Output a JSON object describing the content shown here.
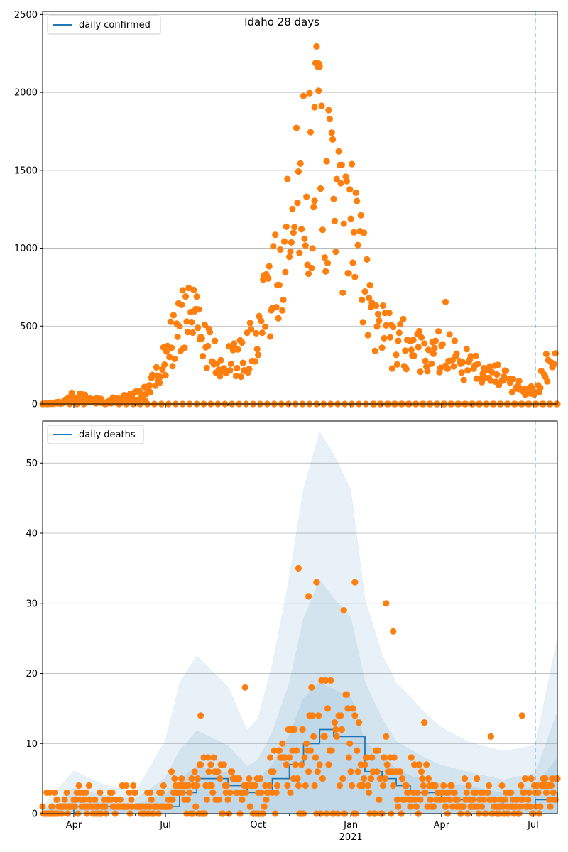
{
  "chart_data": [
    {
      "type": "scatter",
      "title": "Idaho 28 days",
      "x_range": [
        "2020-03-01",
        "2021-07-25"
      ],
      "ylim": [
        0,
        2520
      ],
      "y_ticks": [
        0,
        500,
        1000,
        1500,
        2000,
        2500
      ],
      "y_tick_labels": [
        "0",
        "500",
        "1000",
        "1500",
        "2000",
        "2500"
      ],
      "grid": "horizontal",
      "legend_position": "top-left",
      "vline_date": "2021-07-03",
      "series": [
        {
          "name": "daily confirmed",
          "kind": "line",
          "color": "#1f77b4",
          "x": [
            "2020-03-01",
            "2021-07-25"
          ],
          "y": [
            0,
            0
          ]
        }
      ],
      "observed": {
        "color": "#ff7f0e",
        "anchors": [
          [
            "2020-03-01",
            0
          ],
          [
            "2020-03-20",
            10
          ],
          [
            "2020-04-01",
            55
          ],
          [
            "2020-04-10",
            40
          ],
          [
            "2020-04-20",
            25
          ],
          [
            "2020-05-01",
            20
          ],
          [
            "2020-05-15",
            35
          ],
          [
            "2020-06-01",
            50
          ],
          [
            "2020-06-10",
            70
          ],
          [
            "2020-06-20",
            150
          ],
          [
            "2020-06-28",
            230
          ],
          [
            "2020-07-05",
            380
          ],
          [
            "2020-07-12",
            460
          ],
          [
            "2020-07-20",
            520
          ],
          [
            "2020-07-28",
            520
          ],
          [
            "2020-08-05",
            480
          ],
          [
            "2020-08-15",
            330
          ],
          [
            "2020-08-25",
            280
          ],
          [
            "2020-09-05",
            260
          ],
          [
            "2020-09-15",
            300
          ],
          [
            "2020-09-25",
            400
          ],
          [
            "2020-10-05",
            560
          ],
          [
            "2020-10-15",
            700
          ],
          [
            "2020-10-25",
            880
          ],
          [
            "2020-11-05",
            1150
          ],
          [
            "2020-11-15",
            1400
          ],
          [
            "2020-11-25",
            1600
          ],
          [
            "2020-12-05",
            1500
          ],
          [
            "2020-12-12",
            1380
          ],
          [
            "2020-12-20",
            1200
          ],
          [
            "2020-12-28",
            1060
          ],
          [
            "2021-01-05",
            1000
          ],
          [
            "2021-01-15",
            780
          ],
          [
            "2021-01-25",
            560
          ],
          [
            "2021-02-05",
            440
          ],
          [
            "2021-02-15",
            390
          ],
          [
            "2021-03-01",
            370
          ],
          [
            "2021-03-15",
            360
          ],
          [
            "2021-04-01",
            340
          ],
          [
            "2021-04-15",
            300
          ],
          [
            "2021-05-01",
            230
          ],
          [
            "2021-05-15",
            190
          ],
          [
            "2021-06-01",
            170
          ],
          [
            "2021-06-10",
            130
          ],
          [
            "2021-06-20",
            100
          ],
          [
            "2021-07-01",
            85
          ],
          [
            "2021-07-08",
            140
          ],
          [
            "2021-07-15",
            250
          ],
          [
            "2021-07-25",
            420
          ]
        ],
        "outliers": [
          [
            "2020-11-28",
            2295
          ],
          [
            "2020-11-21",
            1995
          ],
          [
            "2020-11-30",
            2010
          ],
          [
            "2020-11-26",
            1905
          ],
          [
            "2021-01-02",
            1540
          ],
          [
            "2020-07-18",
            730
          ],
          [
            "2020-08-01",
            690
          ],
          [
            "2021-04-05",
            655
          ]
        ]
      }
    },
    {
      "type": "scatter",
      "title": "",
      "x_range": [
        "2020-03-01",
        "2021-07-25"
      ],
      "ylim": [
        0,
        56
      ],
      "y_ticks": [
        0,
        10,
        20,
        30,
        40,
        50
      ],
      "y_tick_labels": [
        "0",
        "10",
        "20",
        "30",
        "40",
        "50"
      ],
      "grid": "horizontal",
      "legend_position": "top-left",
      "vline_date": "2021-07-03",
      "x_ticks": [
        {
          "date": "2020-04-01",
          "label": "Apr"
        },
        {
          "date": "2020-07-01",
          "label": "Jul"
        },
        {
          "date": "2020-10-01",
          "label": "Oct"
        },
        {
          "date": "2021-01-01",
          "label": "Jan"
        },
        {
          "date": "2021-04-01",
          "label": "Apr"
        },
        {
          "date": "2021-07-01",
          "label": "Jul"
        }
      ],
      "x_sub_label": {
        "date": "2021-01-01",
        "label": "2021"
      },
      "series": [
        {
          "name": "daily deaths",
          "kind": "step",
          "color": "#1f77b4",
          "x": [
            "2020-03-01",
            "2020-04-01",
            "2020-05-01",
            "2020-06-01",
            "2020-07-01",
            "2020-07-15",
            "2020-08-01",
            "2020-09-01",
            "2020-09-20",
            "2020-10-01",
            "2020-10-15",
            "2020-11-01",
            "2020-11-15",
            "2020-12-01",
            "2020-12-15",
            "2021-01-01",
            "2021-01-15",
            "2021-02-01",
            "2021-02-15",
            "2021-03-01",
            "2021-03-15",
            "2021-04-01",
            "2021-05-01",
            "2021-06-01",
            "2021-07-03",
            "2021-07-25"
          ],
          "y": [
            0,
            1,
            1,
            1,
            1,
            3,
            5,
            4,
            3,
            3,
            5,
            7,
            10,
            12,
            11,
            11,
            6,
            5,
            4,
            3,
            3,
            2,
            2,
            1,
            2,
            3
          ]
        }
      ],
      "bands": {
        "color": "#1f77b4",
        "x": [
          "2020-03-01",
          "2020-04-01",
          "2020-05-01",
          "2020-06-01",
          "2020-07-01",
          "2020-07-15",
          "2020-08-01",
          "2020-09-01",
          "2020-09-20",
          "2020-10-01",
          "2020-10-15",
          "2020-11-01",
          "2020-11-15",
          "2020-12-01",
          "2020-12-15",
          "2021-01-01",
          "2021-01-15",
          "2021-02-01",
          "2021-02-15",
          "2021-03-01",
          "2021-03-15",
          "2021-04-01",
          "2021-05-01",
          "2021-06-01",
          "2021-07-03",
          "2021-07-25"
        ],
        "upper": [
          1,
          6,
          4,
          3,
          10,
          18,
          22,
          18,
          12,
          14,
          22,
          35,
          48,
          56,
          52,
          46,
          30,
          22,
          18,
          16,
          14,
          12,
          10,
          9,
          10,
          26
        ],
        "middle": [
          0.5,
          3.5,
          2.5,
          2,
          5,
          9,
          12,
          10,
          7,
          8,
          12,
          19,
          28,
          33,
          30,
          27,
          18,
          13,
          10,
          9,
          8,
          7,
          6,
          5,
          6,
          15
        ],
        "inner": [
          0.2,
          1.8,
          1.5,
          1.2,
          2.8,
          5,
          7,
          6,
          4.5,
          5,
          7,
          11,
          16,
          18,
          17,
          16,
          10,
          8,
          6.5,
          5.5,
          5,
          4.5,
          4,
          3,
          4,
          8
        ]
      },
      "observed": {
        "color": "#ff7f0e",
        "outliers": [
          [
            "2020-11-10",
            35
          ],
          [
            "2020-11-28",
            33
          ],
          [
            "2021-01-05",
            33
          ],
          [
            "2020-11-20",
            31
          ],
          [
            "2021-02-05",
            30
          ],
          [
            "2020-12-25",
            29
          ],
          [
            "2021-02-12",
            26
          ],
          [
            "2021-06-20",
            14
          ],
          [
            "2021-05-20",
            11
          ],
          [
            "2020-09-18",
            18
          ],
          [
            "2020-08-05",
            14
          ],
          [
            "2021-03-15",
            13
          ]
        ]
      }
    }
  ]
}
